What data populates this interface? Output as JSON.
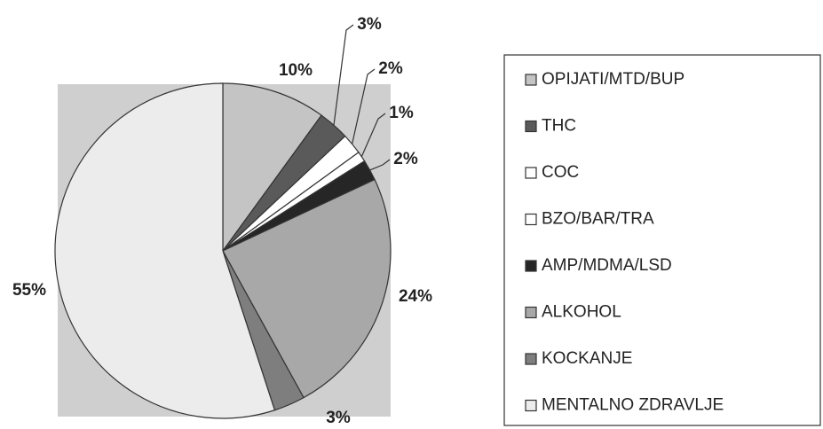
{
  "chart_data": {
    "type": "pie",
    "categories": [
      "OPIJATI/MTD/BUP",
      "THC",
      "COC",
      "BZO/BAR/TRA",
      "AMP/MDMA/LSD",
      "ALKOHOL",
      "KOCKANJE",
      "MENTALNO ZDRAVLJE"
    ],
    "values": [
      10,
      3,
      2,
      1,
      2,
      24,
      3,
      55
    ],
    "value_labels": [
      "10%",
      "3%",
      "2%",
      "1%",
      "2%",
      "24%",
      "3%",
      "55%"
    ],
    "colors": [
      "#c4c4c4",
      "#5a5a5a",
      "#ffffff",
      "#ffffff",
      "#262626",
      "#a8a8a8",
      "#7e7e7e",
      "#ececec"
    ]
  }
}
